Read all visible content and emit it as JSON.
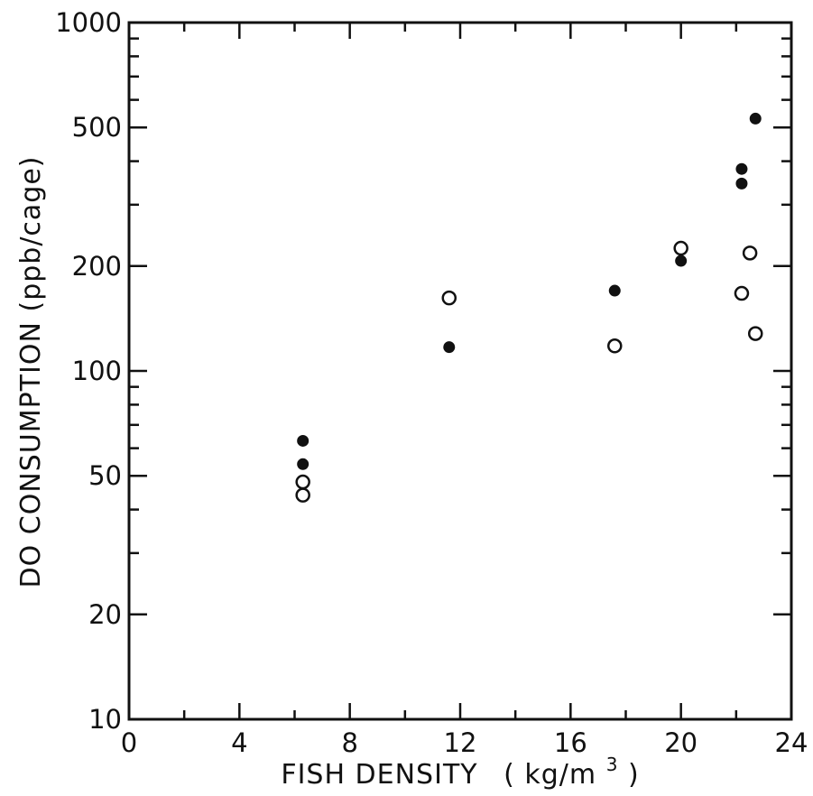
{
  "chart_data": {
    "type": "scatter",
    "xlabel": "FISH DENSITY",
    "xlabel_unit": "( kg/m",
    "xlabel_unit_sup": "3",
    "xlabel_unit_close": " )",
    "ylabel": "DO CONSUMPTION (ppb/cage)",
    "xlim": [
      0,
      24
    ],
    "ylim": [
      10,
      1000
    ],
    "yscale": "log",
    "grid": false,
    "x_ticks": [
      0,
      4,
      8,
      12,
      16,
      20,
      24
    ],
    "x_tick_labels": [
      "0",
      "4",
      "8",
      "12",
      "16",
      "20",
      "24"
    ],
    "y_ticks_labeled": [
      10,
      20,
      50,
      100,
      200,
      500,
      1000
    ],
    "y_tick_labels": [
      "10",
      "20",
      "50",
      "100",
      "200",
      "500",
      "1000"
    ],
    "y_ticks_minor": [
      30,
      40,
      60,
      70,
      80,
      90,
      300,
      400,
      600,
      700,
      800,
      900
    ],
    "series": [
      {
        "marker": "filled-circle",
        "color": "#111111",
        "points": [
          {
            "x": 6.3,
            "y": 63
          },
          {
            "x": 6.3,
            "y": 54
          },
          {
            "x": 11.6,
            "y": 117
          },
          {
            "x": 17.6,
            "y": 170
          },
          {
            "x": 20.0,
            "y": 207
          },
          {
            "x": 22.2,
            "y": 380
          },
          {
            "x": 22.2,
            "y": 345
          },
          {
            "x": 22.7,
            "y": 530
          }
        ]
      },
      {
        "marker": "open-circle",
        "color": "#111111",
        "points": [
          {
            "x": 6.3,
            "y": 48
          },
          {
            "x": 6.3,
            "y": 44
          },
          {
            "x": 11.6,
            "y": 162
          },
          {
            "x": 17.6,
            "y": 118
          },
          {
            "x": 20.0,
            "y": 225
          },
          {
            "x": 22.2,
            "y": 167
          },
          {
            "x": 22.5,
            "y": 218
          },
          {
            "x": 22.7,
            "y": 128
          }
        ]
      }
    ]
  }
}
